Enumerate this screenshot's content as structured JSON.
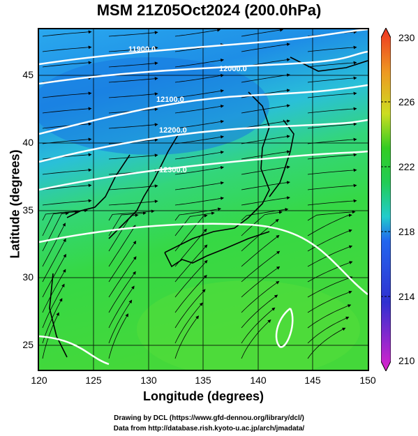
{
  "title": "MSM 21Z05Oct2024 (200.0hPa)",
  "x_axis": {
    "label": "Longitude (degrees)",
    "ticks": [
      "120",
      "125",
      "130",
      "135",
      "140",
      "145",
      "150"
    ],
    "range": [
      120,
      150
    ]
  },
  "y_axis": {
    "label": "Latitude  (degrees)",
    "ticks": [
      "25",
      "30",
      "35",
      "40",
      "45"
    ],
    "range": [
      22.4,
      47.6
    ]
  },
  "colorbar": {
    "ticks": [
      "230",
      "226",
      "222",
      "218",
      "214",
      "210"
    ],
    "range": [
      210,
      230
    ],
    "colors": [
      "#d61ad6",
      "#3b3bd6",
      "#2fd6d6",
      "#22cc22",
      "#ccdd22",
      "#ee8822",
      "#ee3322"
    ]
  },
  "contours": [
    {
      "label": "11900.0",
      "level": 11900
    },
    {
      "label": "12000.0",
      "level": 12000
    },
    {
      "label": "12100.0",
      "level": 12100
    },
    {
      "label": "12200.0",
      "level": 12200
    },
    {
      "label": "12300.0",
      "level": 12300
    }
  ],
  "credits": {
    "line1": "Drawing by DCL (https://www.gfd-dennou.org/library/dcl/)",
    "line2": "Data from http://database.rish.kyoto-u.ac.jp/arch/jmadata/"
  },
  "colors": {
    "cold_region": "#2299ee",
    "warm_region": "#33dd33",
    "contour": "#ffffff",
    "streamline": "#000000"
  }
}
